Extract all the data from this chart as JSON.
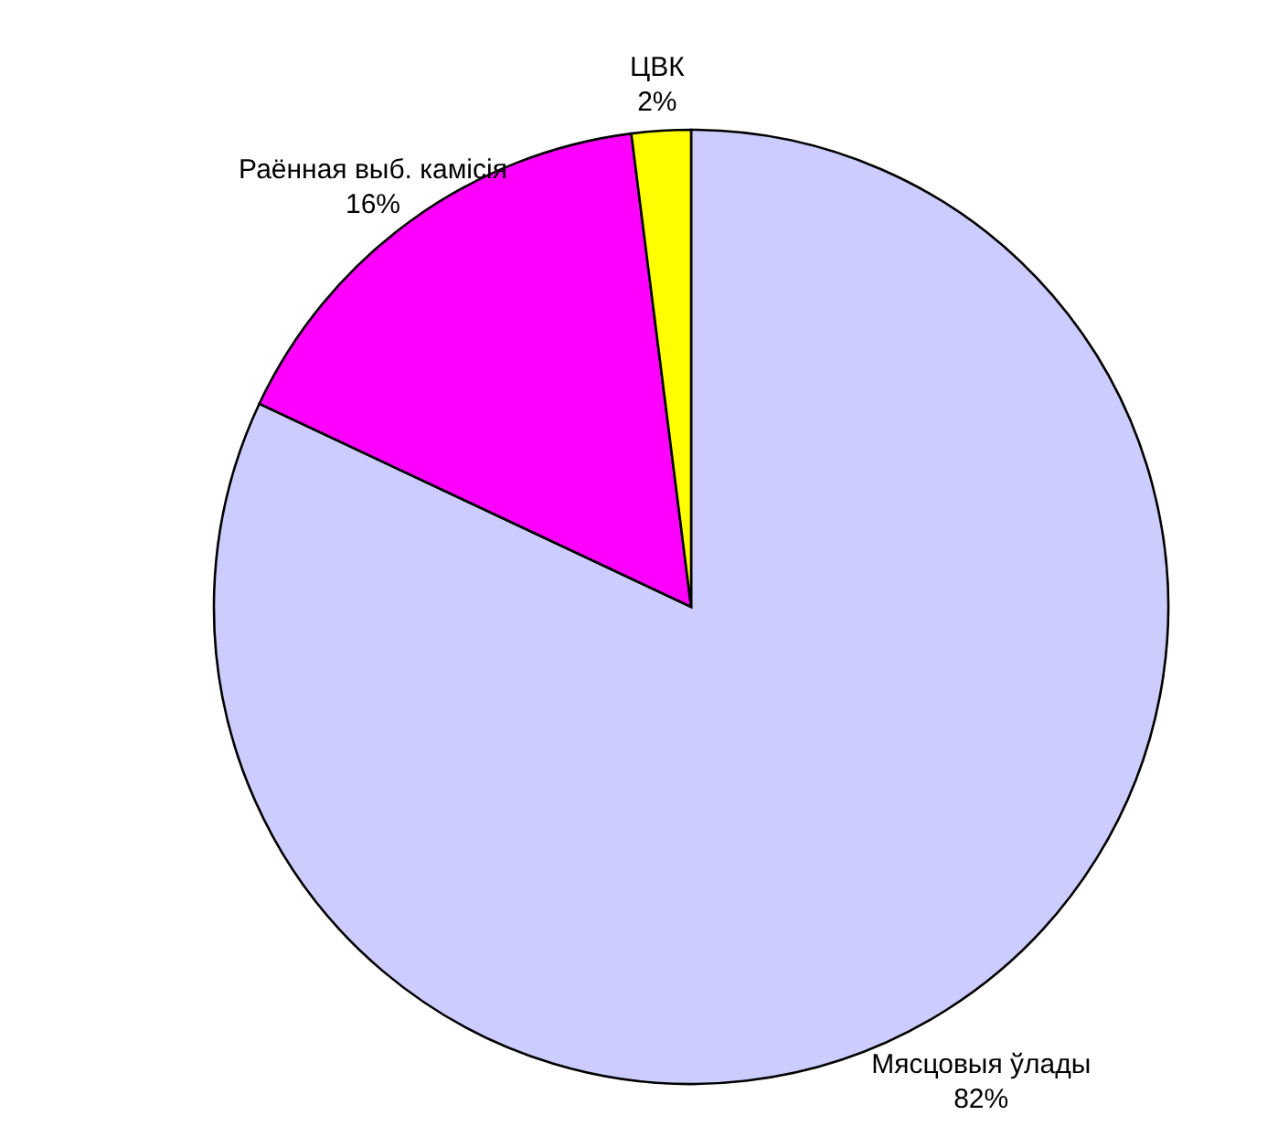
{
  "chart_data": {
    "type": "pie",
    "categories": [
      "Мясцовыя ўлады",
      "Раённая выб. камісія",
      "ЦВК"
    ],
    "values": [
      82,
      16,
      2
    ],
    "colors": [
      "#ccccff",
      "#ff00ff",
      "#ffff00"
    ],
    "value_labels": [
      "82%",
      "16%",
      "2%"
    ]
  }
}
